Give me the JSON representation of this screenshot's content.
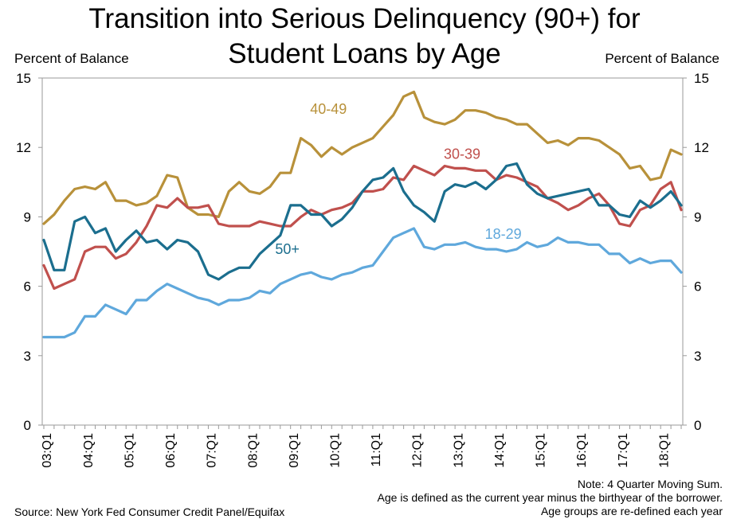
{
  "title_line1": "Transition into Serious Delinquency (90+) for",
  "title_line2": "Student Loans by Age",
  "left_axis_label": "Percent of Balance",
  "right_axis_label": "Percent of Balance",
  "note_line1": "Note: 4 Quarter Moving Sum.",
  "note_line2": "Age is defined as the current year minus the birthyear of the borrower.",
  "note_line3": "Age groups are re-defined each year",
  "source": "Source: New York Fed Consumer Credit Panel/Equifax",
  "chart_data": {
    "type": "line",
    "title": "Transition into Serious Delinquency (90+) for Student Loans by Age",
    "ylabel": "Percent of Balance",
    "ylim": [
      0,
      15
    ],
    "yticks": [
      0,
      3,
      6,
      9,
      12,
      15
    ],
    "grid": false,
    "x_tick_labels": [
      "03:Q1",
      "04:Q1",
      "05:Q1",
      "06:Q1",
      "07:Q1",
      "08:Q1",
      "09:Q1",
      "10:Q1",
      "11:Q1",
      "12:Q1",
      "13:Q1",
      "14:Q1",
      "15:Q1",
      "16:Q1",
      "17:Q1",
      "18:Q1"
    ],
    "x_start": "03:Q1",
    "x_end": "18:Q4",
    "series": [
      {
        "name": "40-49",
        "color": "#B8913A",
        "values": [
          8.7,
          9.1,
          9.7,
          10.2,
          10.3,
          10.2,
          10.5,
          9.7,
          9.7,
          9.5,
          9.6,
          9.9,
          10.8,
          10.7,
          9.4,
          9.1,
          9.1,
          9.0,
          10.1,
          10.5,
          10.1,
          10.0,
          10.3,
          10.9,
          10.9,
          12.4,
          12.1,
          11.6,
          12.0,
          11.7,
          12.0,
          12.2,
          12.4,
          12.9,
          13.4,
          14.2,
          14.4,
          13.3,
          13.1,
          13.0,
          13.2,
          13.6,
          13.6,
          13.5,
          13.3,
          13.2,
          13.0,
          13.0,
          12.6,
          12.2,
          12.3,
          12.1,
          12.4,
          12.4,
          12.3,
          12.0,
          11.7,
          11.1,
          11.2,
          10.6,
          10.7,
          11.9,
          11.7
        ]
      },
      {
        "name": "30-39",
        "color": "#C0504D",
        "values": [
          6.9,
          5.9,
          6.1,
          6.3,
          7.5,
          7.7,
          7.7,
          7.2,
          7.4,
          7.9,
          8.6,
          9.5,
          9.4,
          9.8,
          9.4,
          9.4,
          9.5,
          8.7,
          8.6,
          8.6,
          8.6,
          8.8,
          8.7,
          8.6,
          8.6,
          9.0,
          9.3,
          9.1,
          9.3,
          9.4,
          9.6,
          10.1,
          10.1,
          10.2,
          10.7,
          10.6,
          11.2,
          11.0,
          10.8,
          11.2,
          11.1,
          11.1,
          11.0,
          11.0,
          10.6,
          10.8,
          10.7,
          10.5,
          10.3,
          9.8,
          9.6,
          9.3,
          9.5,
          9.8,
          10.0,
          9.5,
          8.7,
          8.6,
          9.3,
          9.5,
          10.2,
          10.5,
          9.3
        ]
      },
      {
        "name": "50+",
        "color": "#1B6E8E",
        "values": [
          8.0,
          6.7,
          6.7,
          8.8,
          9.0,
          8.3,
          8.5,
          7.5,
          8.0,
          8.4,
          7.9,
          8.0,
          7.6,
          8.0,
          7.9,
          7.5,
          6.5,
          6.3,
          6.6,
          6.8,
          6.8,
          7.4,
          7.8,
          8.2,
          9.5,
          9.5,
          9.1,
          9.1,
          8.6,
          8.9,
          9.4,
          10.1,
          10.6,
          10.7,
          11.1,
          10.1,
          9.5,
          9.2,
          8.8,
          10.1,
          10.4,
          10.3,
          10.5,
          10.2,
          10.6,
          11.2,
          11.3,
          10.4,
          10.0,
          9.8,
          9.9,
          10.0,
          10.1,
          10.2,
          9.5,
          9.5,
          9.1,
          9.0,
          9.7,
          9.4,
          9.7,
          10.1,
          9.5
        ]
      },
      {
        "name": "18-29",
        "color": "#5FA8DC",
        "values": [
          3.8,
          3.8,
          3.8,
          4.0,
          4.7,
          4.7,
          5.2,
          5.0,
          4.8,
          5.4,
          5.4,
          5.8,
          6.1,
          5.9,
          5.7,
          5.5,
          5.4,
          5.2,
          5.4,
          5.4,
          5.5,
          5.8,
          5.7,
          6.1,
          6.3,
          6.5,
          6.6,
          6.4,
          6.3,
          6.5,
          6.6,
          6.8,
          6.9,
          7.5,
          8.1,
          8.3,
          8.5,
          7.7,
          7.6,
          7.8,
          7.8,
          7.9,
          7.7,
          7.6,
          7.6,
          7.5,
          7.6,
          7.9,
          7.7,
          7.8,
          8.1,
          7.9,
          7.9,
          7.8,
          7.8,
          7.4,
          7.4,
          7.0,
          7.2,
          7.0,
          7.1,
          7.1,
          6.6
        ]
      }
    ],
    "annotations": [
      {
        "text": "40-49",
        "series": "40-49"
      },
      {
        "text": "30-39",
        "series": "30-39"
      },
      {
        "text": "50+",
        "series": "50+"
      },
      {
        "text": "18-29",
        "series": "18-29"
      }
    ]
  }
}
